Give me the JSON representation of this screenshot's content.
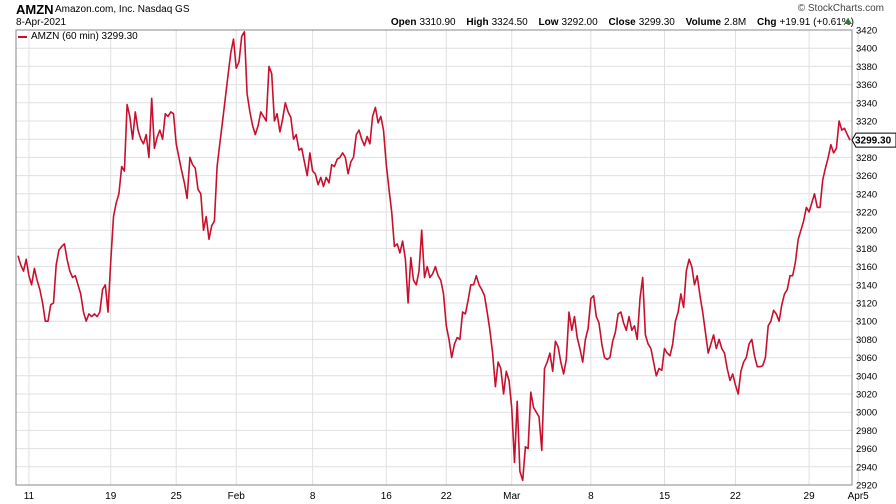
{
  "header": {
    "symbol": "AMZN",
    "company": "Amazon.com, Inc.  Nasdaq GS",
    "date": "8-Apr-2021",
    "brand": "© StockCharts.com",
    "open_label": "Open",
    "open": "3310.90",
    "high_label": "High",
    "high": "3324.50",
    "low_label": "Low",
    "low": "3292.00",
    "close_label": "Close",
    "close": "3299.30",
    "volume_label": "Volume",
    "volume": "2.8M",
    "chg_label": "Chg",
    "chg": "+19.91 (+0.61%)"
  },
  "legend": {
    "label": "AMZN (60 min) 3299.30"
  },
  "price_tag": "3299.30",
  "colors": {
    "line": "#c8102e",
    "grid": "#e0e0e0",
    "frame": "#888888",
    "up_arrow": "#2e7d32"
  },
  "chart_data": {
    "type": "line",
    "title": "AMZN (60 min)",
    "ylim": [
      2920,
      3420
    ],
    "yticks": [
      2920,
      2940,
      2960,
      2980,
      3000,
      3020,
      3040,
      3060,
      3080,
      3100,
      3120,
      3140,
      3160,
      3180,
      3200,
      3220,
      3240,
      3260,
      3280,
      3300,
      3320,
      3340,
      3360,
      3380,
      3400,
      3420
    ],
    "x_labels": [
      "11",
      "19",
      "25",
      "Feb",
      "8",
      "16",
      "22",
      "Mar",
      "8",
      "15",
      "22",
      "29",
      "Apr5"
    ],
    "x_label_index": [
      4,
      34,
      58,
      80,
      108,
      135,
      157,
      181,
      210,
      237,
      263,
      290,
      308
    ],
    "series": [
      {
        "name": "AMZN",
        "values": [
          3172,
          3162,
          3155,
          3168,
          3150,
          3140,
          3158,
          3145,
          3135,
          3120,
          3100,
          3100,
          3118,
          3120,
          3162,
          3178,
          3182,
          3185,
          3168,
          3155,
          3148,
          3150,
          3140,
          3130,
          3110,
          3100,
          3108,
          3105,
          3108,
          3105,
          3110,
          3135,
          3140,
          3110,
          3165,
          3215,
          3230,
          3240,
          3270,
          3265,
          3338,
          3325,
          3300,
          3330,
          3310,
          3300,
          3295,
          3305,
          3280,
          3345,
          3290,
          3302,
          3310,
          3300,
          3328,
          3325,
          3330,
          3328,
          3295,
          3280,
          3265,
          3252,
          3235,
          3280,
          3272,
          3268,
          3245,
          3240,
          3200,
          3215,
          3190,
          3205,
          3210,
          3270,
          3296,
          3320,
          3345,
          3370,
          3395,
          3410,
          3378,
          3385,
          3413,
          3418,
          3350,
          3330,
          3315,
          3305,
          3315,
          3330,
          3325,
          3320,
          3380,
          3372,
          3320,
          3328,
          3308,
          3322,
          3340,
          3330,
          3324,
          3300,
          3305,
          3288,
          3290,
          3275,
          3260,
          3285,
          3265,
          3262,
          3250,
          3258,
          3248,
          3258,
          3252,
          3272,
          3270,
          3278,
          3280,
          3285,
          3280,
          3262,
          3275,
          3280,
          3305,
          3310,
          3300,
          3293,
          3303,
          3295,
          3325,
          3335,
          3318,
          3325,
          3310,
          3272,
          3245,
          3220,
          3182,
          3185,
          3175,
          3188,
          3168,
          3120,
          3170,
          3145,
          3140,
          3155,
          3200,
          3148,
          3160,
          3148,
          3152,
          3160,
          3150,
          3145,
          3130,
          3095,
          3080,
          3060,
          3075,
          3082,
          3080,
          3110,
          3108,
          3123,
          3140,
          3140,
          3150,
          3140,
          3135,
          3128,
          3110,
          3090,
          3065,
          3028,
          3055,
          3048,
          3020,
          3045,
          3035,
          3005,
          2945,
          3012,
          2935,
          2925,
          2962,
          2960,
          3022,
          3005,
          3000,
          2995,
          2958,
          3048,
          3055,
          3065,
          3045,
          3078,
          3072,
          3055,
          3042,
          3058,
          3110,
          3090,
          3105,
          3082,
          3070,
          3055,
          3080,
          3092,
          3125,
          3128,
          3105,
          3098,
          3075,
          3060,
          3058,
          3060,
          3078,
          3088,
          3108,
          3110,
          3098,
          3090,
          3105,
          3090,
          3095,
          3080,
          3125,
          3148,
          3085,
          3075,
          3070,
          3055,
          3040,
          3048,
          3046,
          3070,
          3065,
          3062,
          3075,
          3100,
          3110,
          3130,
          3115,
          3155,
          3168,
          3160,
          3140,
          3150,
          3128,
          3110,
          3088,
          3065,
          3075,
          3085,
          3070,
          3080,
          3070,
          3065,
          3048,
          3035,
          3042,
          3030,
          3020,
          3045,
          3055,
          3060,
          3075,
          3080,
          3062,
          3050,
          3050,
          3051,
          3060,
          3095,
          3100,
          3112,
          3108,
          3100,
          3118,
          3130,
          3135,
          3150,
          3150,
          3165,
          3190,
          3200,
          3210,
          3225,
          3220,
          3230,
          3240,
          3225,
          3225,
          3255,
          3268,
          3280,
          3294,
          3285,
          3290,
          3320,
          3310,
          3312,
          3305,
          3299
        ]
      }
    ]
  }
}
